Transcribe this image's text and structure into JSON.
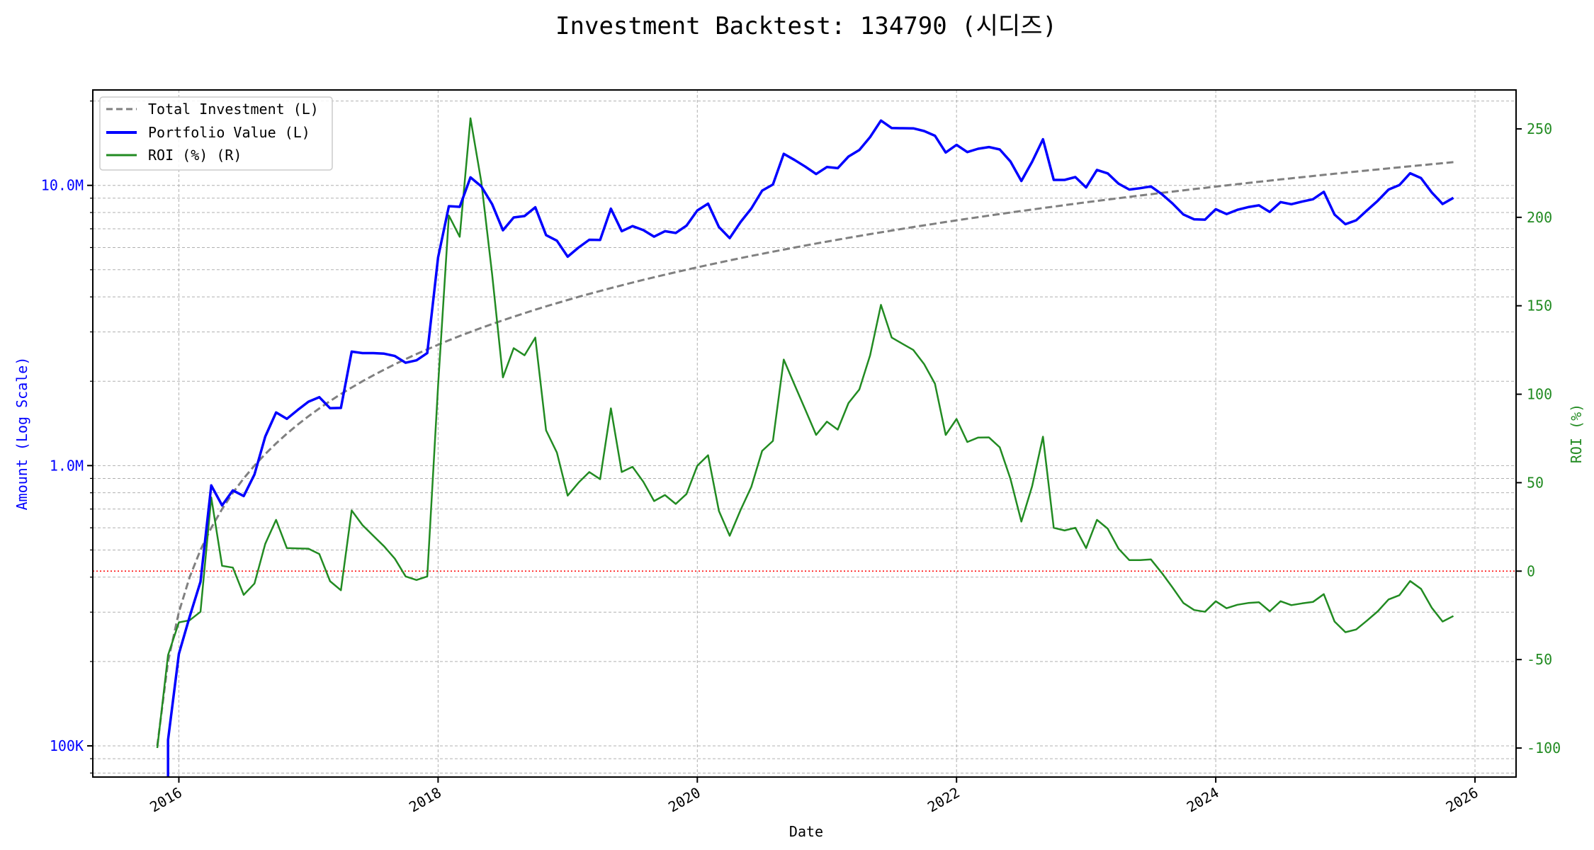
{
  "chart_data": {
    "type": "line",
    "title": "Investment Backtest: 134790 (시디즈)",
    "xlabel": "Date",
    "ylabel_left": "Amount (Log Scale)",
    "ylabel_right": "ROI (%)",
    "left_axis": {
      "scale": "log",
      "ylim": [
        77400,
        21900000
      ],
      "ticks": [
        100000,
        1000000,
        10000000
      ],
      "tick_labels": [
        "100K",
        "1.0M",
        "10.0M"
      ],
      "color": "#0000ff"
    },
    "right_axis": {
      "scale": "linear",
      "ylim": [
        -116.4,
        272
      ],
      "ticks": [
        -100,
        -50,
        0,
        50,
        100,
        150,
        200,
        250
      ],
      "tick_labels": [
        "-100",
        "-50",
        "0",
        "50",
        "100",
        "150",
        "200",
        "250"
      ],
      "color": "#228b22"
    },
    "x_axis": {
      "type": "date",
      "xlim": [
        2015.336,
        2026.317
      ],
      "ticks": [
        2016,
        2018,
        2020,
        2022,
        2024,
        2026
      ],
      "tick_labels": [
        "2016",
        "2018",
        "2020",
        "2022",
        "2024",
        "2026"
      ]
    },
    "grid": true,
    "legend": {
      "placement": "top-left",
      "entries": [
        "Total Investment (L)",
        "Portfolio Value (L)",
        "ROI (%) (R)"
      ]
    },
    "reference_line": {
      "axis": "right",
      "value": 0,
      "color": "#ff0000",
      "style": "dotted"
    },
    "x": [
      "2015-11",
      "2015-12",
      "2016-01",
      "2016-02",
      "2016-03",
      "2016-04",
      "2016-05",
      "2016-06",
      "2016-07",
      "2016-08",
      "2016-09",
      "2016-10",
      "2016-11",
      "2016-12",
      "2017-01",
      "2017-02",
      "2017-03",
      "2017-04",
      "2017-05",
      "2017-06",
      "2017-07",
      "2017-08",
      "2017-09",
      "2017-10",
      "2017-11",
      "2017-12",
      "2018-01",
      "2018-02",
      "2018-03",
      "2018-04",
      "2018-05",
      "2018-06",
      "2018-07",
      "2018-08",
      "2018-09",
      "2018-10",
      "2018-11",
      "2018-12",
      "2019-01",
      "2019-02",
      "2019-03",
      "2019-04",
      "2019-05",
      "2019-06",
      "2019-07",
      "2019-08",
      "2019-09",
      "2019-10",
      "2019-11",
      "2019-12",
      "2020-01",
      "2020-02",
      "2020-03",
      "2020-04",
      "2020-05",
      "2020-06",
      "2020-07",
      "2020-08",
      "2020-09",
      "2020-10",
      "2020-11",
      "2020-12",
      "2021-01",
      "2021-02",
      "2021-03",
      "2021-04",
      "2021-05",
      "2021-06",
      "2021-07",
      "2021-08",
      "2021-09",
      "2021-10",
      "2021-11",
      "2021-12",
      "2022-01",
      "2022-02",
      "2022-03",
      "2022-04",
      "2022-05",
      "2022-06",
      "2022-07",
      "2022-08",
      "2022-09",
      "2022-10",
      "2022-11",
      "2022-12",
      "2023-01",
      "2023-02",
      "2023-03",
      "2023-04",
      "2023-05",
      "2023-06",
      "2023-07",
      "2023-08",
      "2023-09",
      "2023-10",
      "2023-11",
      "2023-12",
      "2024-01",
      "2024-02",
      "2024-03",
      "2024-04",
      "2024-05",
      "2024-06",
      "2024-07",
      "2024-08",
      "2024-09",
      "2024-10",
      "2024-11",
      "2024-12",
      "2025-01",
      "2025-02",
      "2025-03",
      "2025-04",
      "2025-05",
      "2025-06",
      "2025-07",
      "2025-08",
      "2025-09",
      "2025-10",
      "2025-11"
    ],
    "series": [
      {
        "name": "Total Investment (L)",
        "axis": "left",
        "color": "#808080",
        "style": "dashed",
        "values": [
          100000,
          200000,
          300000,
          400000,
          500000,
          600000,
          700000,
          800000,
          900000,
          1000000,
          1100000,
          1200000,
          1300000,
          1400000,
          1500000,
          1600000,
          1700000,
          1800000,
          1900000,
          2000000,
          2100000,
          2200000,
          2300000,
          2400000,
          2500000,
          2600000,
          2700000,
          2800000,
          2900000,
          3000000,
          3100000,
          3200000,
          3300000,
          3400000,
          3500000,
          3600000,
          3700000,
          3800000,
          3900000,
          4000000,
          4100000,
          4200000,
          4300000,
          4400000,
          4500000,
          4600000,
          4700000,
          4800000,
          4900000,
          5000000,
          5100000,
          5200000,
          5300000,
          5400000,
          5500000,
          5600000,
          5700000,
          5800000,
          5900000,
          6000000,
          6100000,
          6200000,
          6300000,
          6400000,
          6500000,
          6600000,
          6700000,
          6800000,
          6900000,
          7000000,
          7100000,
          7200000,
          7300000,
          7400000,
          7500000,
          7600000,
          7700000,
          7800000,
          7900000,
          8000000,
          8100000,
          8200000,
          8300000,
          8400000,
          8500000,
          8600000,
          8700000,
          8800000,
          8900000,
          9000000,
          9100000,
          9200000,
          9300000,
          9400000,
          9500000,
          9600000,
          9700000,
          9800000,
          9900000,
          10000000,
          10100000,
          10200000,
          10300000,
          10400000,
          10500000,
          10600000,
          10700000,
          10800000,
          10900000,
          11000000,
          11100000,
          11200000,
          11300000,
          11400000,
          11500000,
          11600000,
          11700000,
          11800000,
          11900000,
          12000000,
          12100000
        ]
      },
      {
        "name": "Portfolio Value (L)",
        "axis": "left",
        "color": "#0000ff",
        "style": "solid",
        "values": [
          0,
          105000,
          213000,
          289000,
          385000,
          850000,
          721000,
          816000,
          779000,
          930000,
          1269000,
          1548000,
          1469000,
          1579000,
          1691000,
          1755000,
          1603000,
          1606000,
          2552000,
          2520000,
          2520000,
          2508000,
          2461000,
          2328000,
          2375000,
          2522000,
          5535000,
          8428000,
          8381000,
          10680000,
          9920000,
          8576000,
          6914000,
          7684000,
          7770000,
          8352000,
          6645000,
          6346000,
          5565000,
          6000000,
          6396000,
          6384000,
          8256000,
          6864000,
          7155000,
          6923000,
          6561000,
          6864000,
          6762000,
          7180000,
          8140000,
          8606000,
          7102000,
          6480000,
          7398000,
          8266000,
          9576000,
          10069000,
          12956000,
          12324000,
          11663000,
          10974000,
          11624000,
          11520000,
          12675000,
          13378000,
          14874000,
          17034000,
          16008000,
          15995000,
          15975000,
          15624000,
          15038000,
          13098000,
          13950000,
          13148000,
          13514000,
          13697000,
          13430000,
          12160000,
          10368000,
          12136000,
          14608000,
          10458000,
          10455000,
          10707000,
          9831000,
          11352000,
          11036000,
          10143000,
          9664000,
          9770000,
          9914000,
          9306000,
          8617000,
          7872000,
          7566000,
          7546000,
          8217000,
          7900000,
          8181000,
          8364000,
          8487000,
          8039000,
          8715000,
          8565000,
          8753000,
          8921000,
          9483000,
          7865000,
          7271000,
          7504000,
          8136000,
          8812000,
          9660000,
          10022000,
          11045000,
          10620000,
          9437000,
          8580000,
          9027000
        ]
      },
      {
        "name": "ROI (%) (R)",
        "axis": "right",
        "color": "#228b22",
        "style": "solid",
        "values": [
          -100,
          -47.5,
          -29,
          -27.8,
          -23,
          41.7,
          3,
          2,
          -13.4,
          -7,
          15.4,
          29,
          13,
          12.8,
          12.7,
          9.7,
          -5.7,
          -10.8,
          34.3,
          26,
          20,
          14,
          7,
          -3,
          -5,
          -3,
          105,
          201,
          189,
          256,
          220,
          168,
          109.5,
          126,
          122,
          132,
          79.6,
          67,
          42.7,
          50,
          56,
          52,
          92,
          56,
          59,
          50.5,
          39.6,
          43,
          38,
          43.6,
          59.6,
          65.5,
          34,
          20,
          34.5,
          47.6,
          68,
          73.6,
          119.6,
          105.4,
          91.2,
          77,
          84.5,
          80,
          95,
          102.7,
          122,
          150.5,
          132,
          128.5,
          125,
          117,
          106,
          77,
          86,
          73,
          75.5,
          75.6,
          70,
          52,
          28,
          48,
          76,
          24.5,
          23,
          24.5,
          13,
          29,
          24,
          12.7,
          6.2,
          6.2,
          6.6,
          -1,
          -9.3,
          -18,
          -22,
          -23,
          -17,
          -21,
          -19,
          -18,
          -17.6,
          -22.7,
          -17,
          -19.2,
          -18.2,
          -17.4,
          -13,
          -28.5,
          -34.5,
          -33,
          -28,
          -22.7,
          -16,
          -13.6,
          -5.6,
          -10,
          -20.7,
          -28.5,
          -25.4
        ]
      }
    ]
  }
}
